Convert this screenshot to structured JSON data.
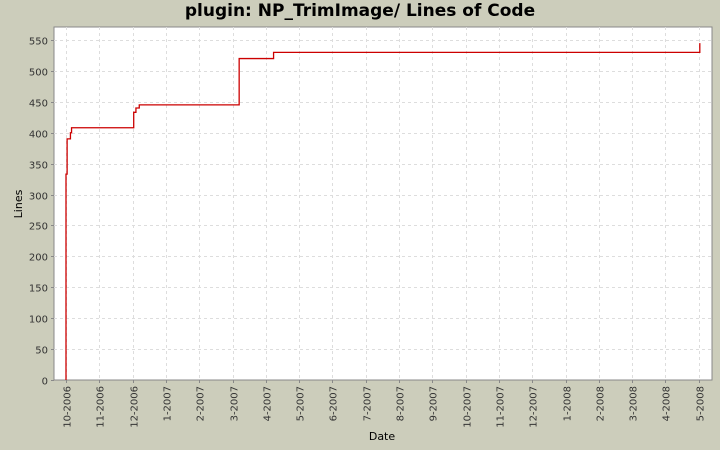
{
  "chart_data": {
    "type": "line",
    "title": "plugin: NP_TrimImage/ Lines of Code",
    "xlabel": "Date",
    "ylabel": "Lines",
    "ylim": [
      0,
      560
    ],
    "yticks": [
      0,
      50,
      100,
      150,
      200,
      250,
      300,
      350,
      400,
      450,
      500,
      550
    ],
    "xticks": [
      "10-2006",
      "11-2006",
      "12-2006",
      "1-2007",
      "2-2007",
      "3-2007",
      "4-2007",
      "5-2007",
      "6-2007",
      "7-2007",
      "8-2007",
      "9-2007",
      "10-2007",
      "11-2007",
      "12-2007",
      "1-2008",
      "2-2008",
      "3-2008",
      "4-2008",
      "5-2008"
    ],
    "grid": true,
    "line_color": "#cc0000",
    "series": [
      {
        "name": "Lines of Code",
        "step": true,
        "points": [
          {
            "x": "2006-10-01",
            "y": 0
          },
          {
            "x": "2006-10-01",
            "y": 333
          },
          {
            "x": "2006-10-02",
            "y": 390
          },
          {
            "x": "2006-10-05",
            "y": 400
          },
          {
            "x": "2006-10-06",
            "y": 408
          },
          {
            "x": "2006-12-02",
            "y": 433
          },
          {
            "x": "2006-12-04",
            "y": 440
          },
          {
            "x": "2006-12-07",
            "y": 445
          },
          {
            "x": "2007-03-07",
            "y": 520
          },
          {
            "x": "2007-04-08",
            "y": 530
          },
          {
            "x": "2008-05-02",
            "y": 545
          }
        ]
      }
    ]
  }
}
